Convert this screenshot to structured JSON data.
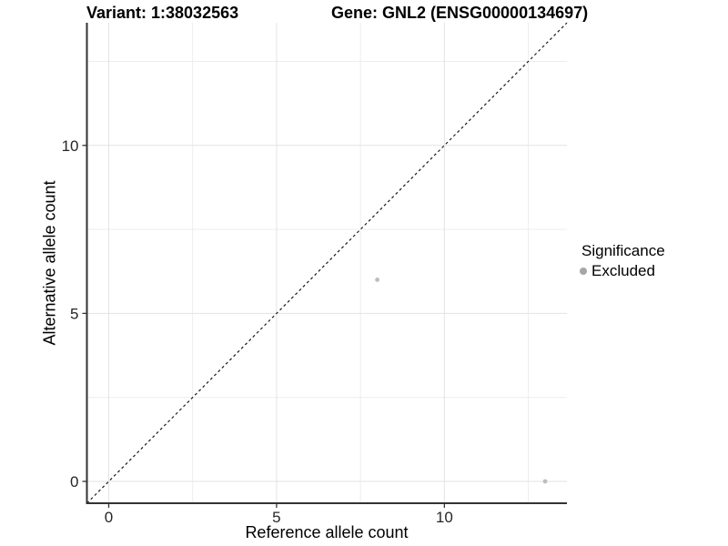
{
  "figure": {
    "title_left": "Variant: 1:38032563",
    "title_right": "Gene: GNL2 (ENSG00000134697)"
  },
  "chart_data": {
    "type": "scatter",
    "title": "Variant: 1:38032563   Gene: GNL2 (ENSG00000134697)",
    "xlabel": "Reference allele count",
    "ylabel": "Alternative allele count",
    "xlim": [
      -0.65,
      13.65
    ],
    "ylim": [
      -0.65,
      13.65
    ],
    "x_ticks": [
      0,
      5,
      10
    ],
    "y_ticks": [
      0,
      5,
      10
    ],
    "x_minor_ticks": [
      2.5,
      7.5,
      12.5
    ],
    "y_minor_ticks": [
      2.5,
      7.5,
      12.5
    ],
    "grid": true,
    "series": [
      {
        "name": "Excluded",
        "point_color": "#bdbdbd",
        "points": [
          {
            "x": 8,
            "y": 6
          },
          {
            "x": 13,
            "y": 0
          }
        ]
      }
    ],
    "reference_line": {
      "kind": "identity",
      "style": "dashed",
      "color": "#1a1a1a"
    },
    "legend": {
      "title": "Significance",
      "position": "right",
      "items": [
        {
          "label": "Excluded",
          "color": "#a6a6a6"
        }
      ]
    }
  },
  "colors": {
    "background": "#ffffff",
    "grid_major": "#e3e3e3",
    "grid_minor": "#ededed",
    "axis_line": "#333333",
    "tick_mark": "#333333",
    "tick_text": "#262626"
  }
}
